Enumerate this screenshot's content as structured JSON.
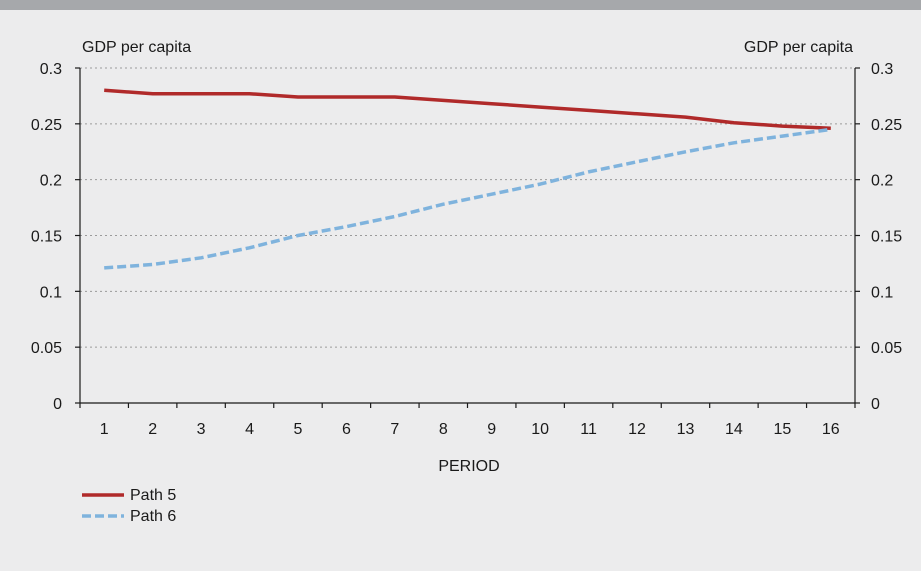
{
  "colors": {
    "background": "#ececed",
    "top_band": "#a6a8ab",
    "grid": "#9a9a9a",
    "axis": "#1a1a1a",
    "path5": "#b02a2a",
    "path6": "#7fb3dd"
  },
  "chart_data": {
    "type": "line",
    "title": "",
    "xlabel": "PERIOD",
    "ylabel_left": "GDP per capita",
    "ylabel_right": "GDP per capita",
    "x": [
      1,
      2,
      3,
      4,
      5,
      6,
      7,
      8,
      9,
      10,
      11,
      12,
      13,
      14,
      15,
      16
    ],
    "x_tick_labels": [
      "1",
      "2",
      "3",
      "4",
      "5",
      "6",
      "7",
      "8",
      "9",
      "10",
      "11",
      "12",
      "13",
      "14",
      "15",
      "16"
    ],
    "ylim": [
      0,
      0.3
    ],
    "y_ticks": [
      0,
      0.05,
      0.1,
      0.15,
      0.2,
      0.25,
      0.3
    ],
    "y_tick_labels": [
      "0",
      "0.05",
      "0.1",
      "0.15",
      "0.2",
      "0.25",
      "0.3"
    ],
    "grid": "horizontal dotted",
    "legend_position": "bottom-left",
    "series": [
      {
        "name": "Path 5",
        "style": "solid",
        "color": "#b02a2a",
        "values": [
          0.28,
          0.277,
          0.277,
          0.277,
          0.274,
          0.274,
          0.274,
          0.271,
          0.268,
          0.265,
          0.262,
          0.259,
          0.256,
          0.251,
          0.248,
          0.246
        ]
      },
      {
        "name": "Path 6",
        "style": "dashed",
        "color": "#7fb3dd",
        "values": [
          0.121,
          0.124,
          0.13,
          0.139,
          0.15,
          0.158,
          0.167,
          0.178,
          0.187,
          0.196,
          0.207,
          0.216,
          0.225,
          0.233,
          0.239,
          0.245
        ]
      }
    ]
  }
}
